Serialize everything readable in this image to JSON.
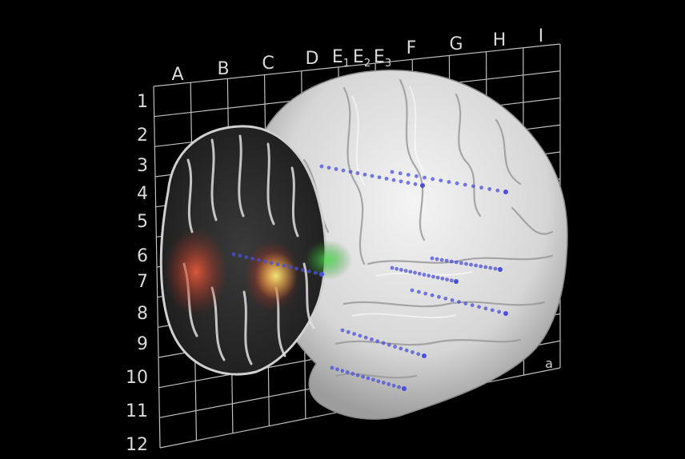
{
  "grid": {
    "column_labels": [
      "A",
      "B",
      "C",
      "D",
      "E1",
      "E2",
      "E3",
      "F",
      "G",
      "H",
      "I"
    ],
    "row_labels": [
      "1",
      "2",
      "3",
      "4",
      "5",
      "6",
      "7",
      "8",
      "9",
      "10",
      "11",
      "12"
    ],
    "corner_label": "a"
  },
  "colors": {
    "background": "#000000",
    "grid_line": "#bfbfbf",
    "brain_surface": "#e3e3e3",
    "electrode_dots": "#4a4fd8",
    "activation_red": "#c0392b",
    "activation_yellow": "#e8e15a",
    "activation_green": "#3fbf3f"
  }
}
